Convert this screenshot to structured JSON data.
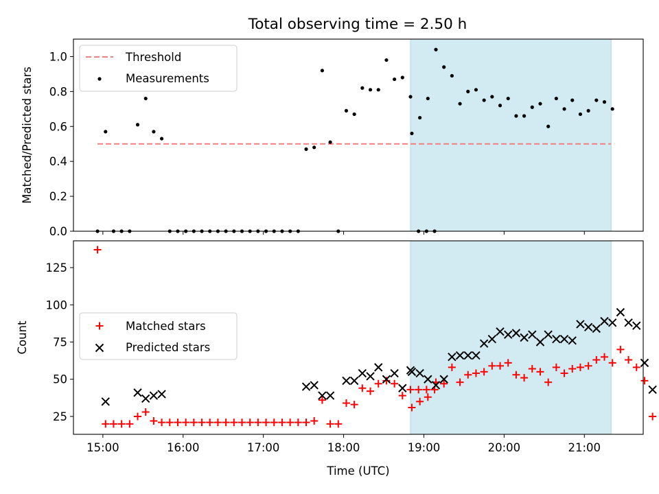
{
  "title": "Total observing time = 2.50 h",
  "colors": {
    "threshold": "#f08080",
    "measurement": "#000000",
    "matched": "#ff0000",
    "predicted": "#000000",
    "shade": "#add8e6"
  },
  "chart_data": [
    {
      "type": "scatter",
      "ylabel": "Matched/Predicted stars",
      "ylim": [
        0,
        1.1
      ],
      "yticks": [
        0.0,
        0.2,
        0.4,
        0.6,
        0.8,
        1.0
      ],
      "ytick_labels": [
        "0.0",
        "0.2",
        "0.4",
        "0.6",
        "0.8",
        "1.0"
      ],
      "xlim": [
        "14:38",
        "21:44"
      ],
      "shaded_region": [
        "18:50",
        "21:20"
      ],
      "legend_position": "upper-left",
      "threshold": {
        "name": "Threshold",
        "value": 0.5,
        "x_range": [
          "14:56",
          "21:20"
        ]
      },
      "series": [
        {
          "name": "Measurements",
          "points": [
            [
              "14:56",
              0.0
            ],
            [
              "15:02",
              0.57
            ],
            [
              "15:08",
              0.0
            ],
            [
              "15:14",
              0.0
            ],
            [
              "15:20",
              0.0
            ],
            [
              "15:26",
              0.61
            ],
            [
              "15:32",
              0.76
            ],
            [
              "15:38",
              0.57
            ],
            [
              "15:44",
              0.53
            ],
            [
              "15:50",
              0.0
            ],
            [
              "15:56",
              0.0
            ],
            [
              "16:02",
              0.0
            ],
            [
              "16:08",
              0.0
            ],
            [
              "16:14",
              0.0
            ],
            [
              "16:20",
              0.0
            ],
            [
              "16:26",
              0.0
            ],
            [
              "16:32",
              0.0
            ],
            [
              "16:38",
              0.0
            ],
            [
              "16:44",
              0.0
            ],
            [
              "16:50",
              0.0
            ],
            [
              "16:56",
              0.0
            ],
            [
              "17:02",
              0.0
            ],
            [
              "17:08",
              0.0
            ],
            [
              "17:14",
              0.0
            ],
            [
              "17:20",
              0.0
            ],
            [
              "17:26",
              0.0
            ],
            [
              "17:32",
              0.47
            ],
            [
              "17:38",
              0.48
            ],
            [
              "17:44",
              0.92
            ],
            [
              "17:50",
              0.51
            ],
            [
              "17:56",
              0.0
            ],
            [
              "18:02",
              0.69
            ],
            [
              "18:08",
              0.67
            ],
            [
              "18:14",
              0.82
            ],
            [
              "18:20",
              0.81
            ],
            [
              "18:26",
              0.81
            ],
            [
              "18:32",
              0.98
            ],
            [
              "18:38",
              0.87
            ],
            [
              "18:44",
              0.88
            ],
            [
              "18:50",
              0.77
            ],
            [
              "18:56",
              0.0
            ],
            [
              "19:02",
              0.0
            ],
            [
              "19:08",
              0.0
            ],
            [
              "18:51",
              0.56
            ],
            [
              "18:57",
              0.65
            ],
            [
              "19:03",
              0.76
            ],
            [
              "19:09",
              1.04
            ],
            [
              "19:15",
              0.94
            ],
            [
              "19:21",
              0.89
            ],
            [
              "19:27",
              0.73
            ],
            [
              "19:33",
              0.8
            ],
            [
              "19:39",
              0.81
            ],
            [
              "19:45",
              0.75
            ],
            [
              "19:51",
              0.77
            ],
            [
              "19:57",
              0.72
            ],
            [
              "20:03",
              0.76
            ],
            [
              "20:09",
              0.66
            ],
            [
              "20:15",
              0.66
            ],
            [
              "20:21",
              0.71
            ],
            [
              "20:27",
              0.73
            ],
            [
              "20:33",
              0.6
            ],
            [
              "20:39",
              0.76
            ],
            [
              "20:45",
              0.7
            ],
            [
              "20:51",
              0.75
            ],
            [
              "20:57",
              0.67
            ],
            [
              "21:03",
              0.69
            ],
            [
              "21:09",
              0.75
            ],
            [
              "21:15",
              0.74
            ],
            [
              "21:21",
              0.7
            ]
          ]
        }
      ]
    },
    {
      "type": "scatter",
      "xlabel": "Time (UTC)",
      "ylabel": "Count",
      "ylim": [
        13,
        143
      ],
      "yticks": [
        25,
        50,
        75,
        100,
        125
      ],
      "ytick_labels": [
        "25",
        "50",
        "75",
        "100",
        "125"
      ],
      "xlim": [
        "14:38",
        "21:44"
      ],
      "xticks": [
        "15:00",
        "16:00",
        "17:00",
        "18:00",
        "19:00",
        "20:00",
        "21:00"
      ],
      "shaded_region": [
        "18:50",
        "21:20"
      ],
      "legend_position": "center-left",
      "series": [
        {
          "name": "Matched stars",
          "marker": "plus",
          "points": [
            [
              "14:56",
              137
            ],
            [
              "15:02",
              20
            ],
            [
              "15:08",
              20
            ],
            [
              "15:14",
              20
            ],
            [
              "15:20",
              20
            ],
            [
              "15:26",
              25
            ],
            [
              "15:32",
              28
            ],
            [
              "15:38",
              22
            ],
            [
              "15:44",
              21
            ],
            [
              "15:50",
              21
            ],
            [
              "15:56",
              21
            ],
            [
              "16:02",
              21
            ],
            [
              "16:08",
              21
            ],
            [
              "16:14",
              21
            ],
            [
              "16:20",
              21
            ],
            [
              "16:26",
              21
            ],
            [
              "16:32",
              21
            ],
            [
              "16:38",
              21
            ],
            [
              "16:44",
              21
            ],
            [
              "16:50",
              21
            ],
            [
              "16:56",
              21
            ],
            [
              "17:02",
              21
            ],
            [
              "17:08",
              21
            ],
            [
              "17:14",
              21
            ],
            [
              "17:20",
              21
            ],
            [
              "17:26",
              21
            ],
            [
              "17:32",
              21
            ],
            [
              "17:38",
              22
            ],
            [
              "17:44",
              36
            ],
            [
              "17:50",
              20
            ],
            [
              "17:56",
              20
            ],
            [
              "18:02",
              34
            ],
            [
              "18:08",
              33
            ],
            [
              "18:14",
              44
            ],
            [
              "18:20",
              42
            ],
            [
              "18:26",
              47
            ],
            [
              "18:32",
              49
            ],
            [
              "18:38",
              47
            ],
            [
              "18:44",
              39
            ],
            [
              "18:50",
              43
            ],
            [
              "18:56",
              43
            ],
            [
              "19:02",
              43
            ],
            [
              "19:08",
              43
            ],
            [
              "18:51",
              31
            ],
            [
              "18:57",
              35
            ],
            [
              "19:03",
              38
            ],
            [
              "19:09",
              48
            ],
            [
              "19:15",
              47
            ],
            [
              "19:21",
              58
            ],
            [
              "19:27",
              48
            ],
            [
              "19:33",
              53
            ],
            [
              "19:39",
              54
            ],
            [
              "19:45",
              55
            ],
            [
              "19:51",
              59
            ],
            [
              "19:57",
              59
            ],
            [
              "20:03",
              61
            ],
            [
              "20:09",
              53
            ],
            [
              "20:15",
              51
            ],
            [
              "20:21",
              57
            ],
            [
              "20:27",
              55
            ],
            [
              "20:33",
              48
            ],
            [
              "20:39",
              58
            ],
            [
              "20:45",
              54
            ],
            [
              "20:51",
              57
            ],
            [
              "20:57",
              58
            ],
            [
              "21:03",
              59
            ],
            [
              "21:09",
              63
            ],
            [
              "21:15",
              65
            ],
            [
              "21:21",
              61
            ],
            [
              "21:27",
              70
            ],
            [
              "21:33",
              63
            ],
            [
              "21:39",
              58
            ],
            [
              "21:45",
              49
            ],
            [
              "21:51",
              25
            ]
          ]
        },
        {
          "name": "Predicted stars",
          "marker": "x",
          "points": [
            [
              "15:02",
              35
            ],
            [
              "15:26",
              41
            ],
            [
              "15:32",
              37
            ],
            [
              "15:38",
              39
            ],
            [
              "15:44",
              40
            ],
            [
              "17:32",
              45
            ],
            [
              "17:38",
              46
            ],
            [
              "17:44",
              39
            ],
            [
              "17:50",
              39
            ],
            [
              "18:02",
              49
            ],
            [
              "18:08",
              49
            ],
            [
              "18:14",
              54
            ],
            [
              "18:20",
              52
            ],
            [
              "18:26",
              58
            ],
            [
              "18:32",
              50
            ],
            [
              "18:38",
              54
            ],
            [
              "18:44",
              44
            ],
            [
              "18:50",
              56
            ],
            [
              "18:51",
              55
            ],
            [
              "18:57",
              54
            ],
            [
              "19:03",
              50
            ],
            [
              "19:09",
              46
            ],
            [
              "19:15",
              50
            ],
            [
              "19:21",
              65
            ],
            [
              "19:27",
              66
            ],
            [
              "19:33",
              66
            ],
            [
              "19:39",
              66
            ],
            [
              "19:45",
              74
            ],
            [
              "19:51",
              77
            ],
            [
              "19:57",
              82
            ],
            [
              "20:03",
              80
            ],
            [
              "20:09",
              81
            ],
            [
              "20:15",
              78
            ],
            [
              "20:21",
              80
            ],
            [
              "20:27",
              75
            ],
            [
              "20:33",
              80
            ],
            [
              "20:39",
              77
            ],
            [
              "20:45",
              77
            ],
            [
              "20:51",
              76
            ],
            [
              "20:57",
              87
            ],
            [
              "21:03",
              85
            ],
            [
              "21:09",
              84
            ],
            [
              "21:15",
              89
            ],
            [
              "21:21",
              88
            ],
            [
              "21:27",
              95
            ],
            [
              "21:33",
              88
            ],
            [
              "21:39",
              86
            ],
            [
              "21:45",
              61
            ],
            [
              "21:51",
              43
            ]
          ]
        }
      ]
    }
  ]
}
